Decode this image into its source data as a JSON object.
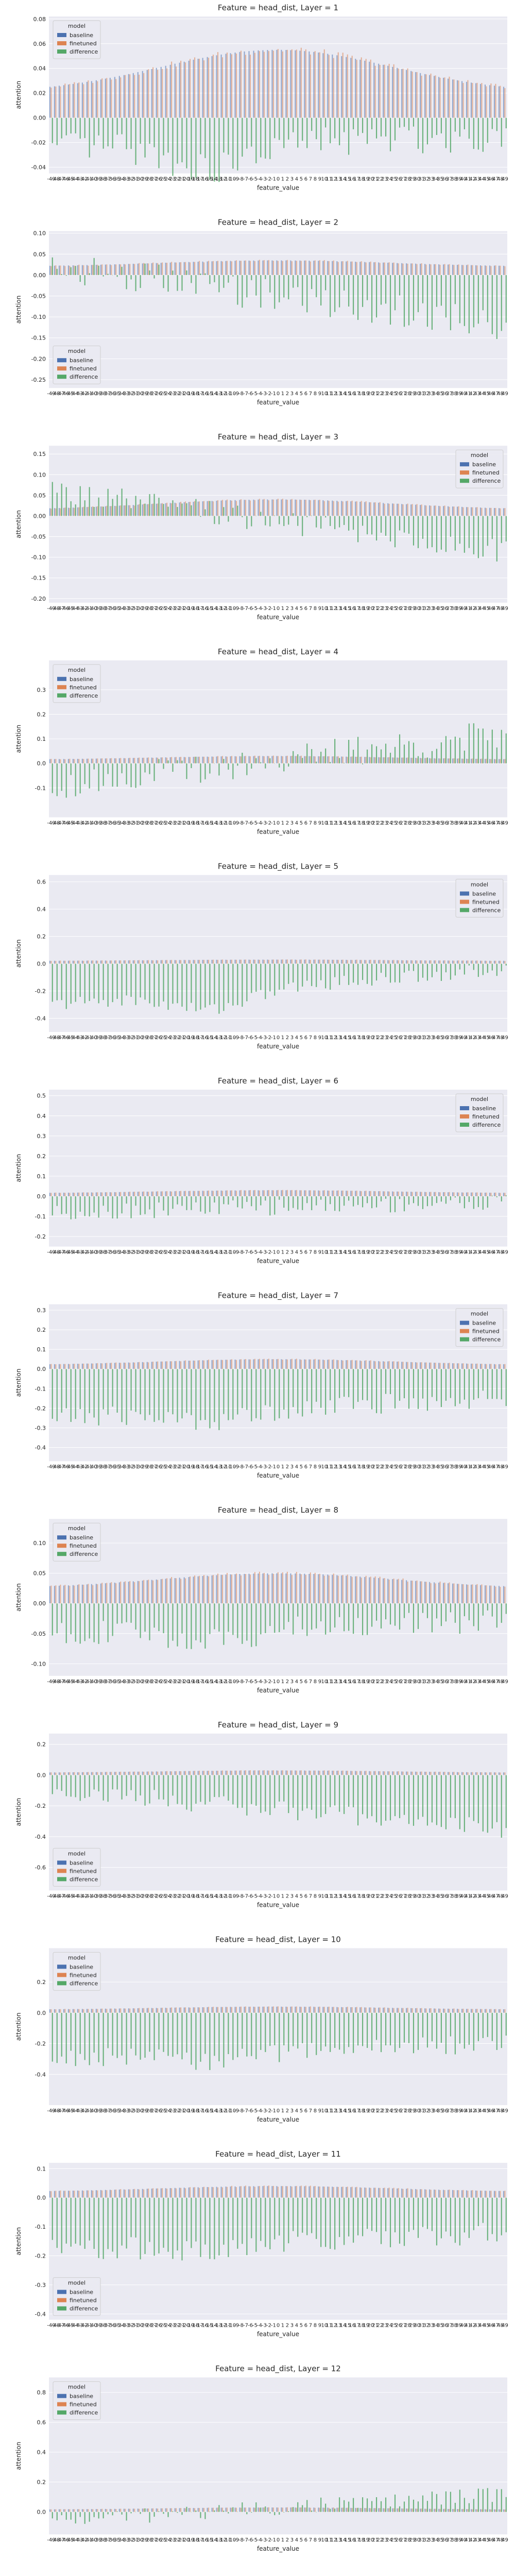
{
  "figure": {
    "xlabel": "feature_value",
    "ylabel": "attention",
    "legend_title": "model",
    "series_names": [
      "baseline",
      "finetuned",
      "difference"
    ],
    "colors": {
      "baseline": "#4c72b0",
      "finetuned": "#dd8452",
      "difference": "#55a868",
      "panel_bg": "#eaeaf2",
      "grid": "#ffffff"
    },
    "x_range": [
      -49,
      49
    ]
  },
  "chart_data": [
    {
      "type": "bar",
      "title": "Feature = head_dist, Layer = 1",
      "ylim": [
        -0.045,
        0.082
      ],
      "yticks": [
        -0.04,
        -0.02,
        0.0,
        0.02,
        0.04,
        0.06,
        0.08
      ],
      "tick_format": 2,
      "legend": "top-left",
      "profile": {
        "base": 0.02,
        "peak": 0.055,
        "width": 25,
        "diff_left": -0.025,
        "diff_right": -0.015,
        "diff_dip": -0.02,
        "noise": 0.012
      }
    },
    {
      "type": "bar",
      "title": "Feature = head_dist, Layer = 2",
      "ylim": [
        -0.27,
        0.105
      ],
      "yticks": [
        -0.25,
        -0.2,
        -0.15,
        -0.1,
        -0.05,
        0.0,
        0.05,
        0.1
      ],
      "tick_format": 2,
      "legend": "bottom-left",
      "profile": {
        "base": 0.02,
        "peak": 0.035,
        "width": 25,
        "diff_left": 0.02,
        "diff_right": -0.12,
        "diff_dip": 0,
        "noise": 0.04
      }
    },
    {
      "type": "bar",
      "title": "Feature = head_dist, Layer = 3",
      "ylim": [
        -0.21,
        0.17
      ],
      "yticks": [
        -0.2,
        -0.15,
        -0.1,
        -0.05,
        0.0,
        0.05,
        0.1,
        0.15
      ],
      "tick_format": 2,
      "legend": "top-right",
      "profile": {
        "base": 0.015,
        "peak": 0.04,
        "width": 25,
        "diff_left": 0.06,
        "diff_right": -0.09,
        "diff_dip": 0,
        "noise": 0.03
      }
    },
    {
      "type": "bar",
      "title": "Feature = head_dist, Layer = 4",
      "ylim": [
        -0.22,
        0.42
      ],
      "yticks": [
        -0.1,
        0.0,
        0.1,
        0.2,
        0.3
      ],
      "tick_format": 1,
      "legend": "top-left",
      "profile": {
        "base": 0.015,
        "peak": 0.03,
        "width": 25,
        "diff_left": -0.09,
        "diff_right": 0.12,
        "diff_dip": 0,
        "noise": 0.06
      }
    },
    {
      "type": "bar",
      "title": "Feature = head_dist, Layer = 5",
      "ylim": [
        -0.5,
        0.65
      ],
      "yticks": [
        -0.4,
        -0.2,
        0.0,
        0.2,
        0.4,
        0.6
      ],
      "tick_format": 1,
      "legend": "top-right",
      "profile": {
        "base": 0.02,
        "peak": 0.03,
        "width": 25,
        "diff_left": -0.3,
        "diff_right": -0.04,
        "diff_dip": -0.12,
        "noise": 0.05
      }
    },
    {
      "type": "bar",
      "title": "Feature = head_dist, Layer = 6",
      "ylim": [
        -0.25,
        0.53
      ],
      "yticks": [
        -0.2,
        -0.1,
        0.0,
        0.1,
        0.2,
        0.3,
        0.4,
        0.5
      ],
      "tick_format": 1,
      "legend": "top-right",
      "profile": {
        "base": 0.015,
        "peak": 0.03,
        "width": 25,
        "diff_left": -0.08,
        "diff_right": -0.03,
        "diff_dip": 0,
        "noise": 0.04
      }
    },
    {
      "type": "bar",
      "title": "Feature = head_dist, Layer = 7",
      "ylim": [
        -0.47,
        0.33
      ],
      "yticks": [
        -0.4,
        -0.3,
        -0.2,
        -0.1,
        0.0,
        0.1,
        0.2,
        0.3
      ],
      "tick_format": 1,
      "legend": "top-right",
      "profile": {
        "base": 0.02,
        "peak": 0.05,
        "width": 25,
        "diff_left": -0.25,
        "diff_right": -0.15,
        "diff_dip": -0.05,
        "noise": 0.05
      }
    },
    {
      "type": "bar",
      "title": "Feature = head_dist, Layer = 8",
      "ylim": [
        -0.12,
        0.14
      ],
      "yticks": [
        -0.1,
        -0.05,
        0.0,
        0.05,
        0.1
      ],
      "tick_format": 2,
      "legend": "top-left",
      "profile": {
        "base": 0.025,
        "peak": 0.05,
        "width": 25,
        "diff_left": -0.05,
        "diff_right": -0.03,
        "diff_dip": -0.02,
        "noise": 0.02
      }
    },
    {
      "type": "bar",
      "title": "Feature = head_dist, Layer = 9",
      "ylim": [
        -0.75,
        0.27
      ],
      "yticks": [
        -0.6,
        -0.4,
        -0.2,
        0.0,
        0.2
      ],
      "tick_format": 1,
      "legend": "bottom-left",
      "profile": {
        "base": 0.015,
        "peak": 0.03,
        "width": 25,
        "diff_left": -0.1,
        "diff_right": -0.35,
        "diff_dip": 0,
        "noise": 0.06
      }
    },
    {
      "type": "bar",
      "title": "Feature = head_dist, Layer = 10",
      "ylim": [
        -0.6,
        0.42
      ],
      "yticks": [
        -0.4,
        -0.2,
        0.0,
        0.2
      ],
      "tick_format": 1,
      "legend": "top-left",
      "profile": {
        "base": 0.02,
        "peak": 0.04,
        "width": 25,
        "diff_left": -0.3,
        "diff_right": -0.2,
        "diff_dip": -0.05,
        "noise": 0.06
      }
    },
    {
      "type": "bar",
      "title": "Feature = head_dist, Layer = 11",
      "ylim": [
        -0.42,
        0.12
      ],
      "yticks": [
        -0.4,
        -0.3,
        -0.2,
        -0.1,
        0.0,
        0.1
      ],
      "tick_format": 1,
      "legend": "bottom-left",
      "profile": {
        "base": 0.02,
        "peak": 0.04,
        "width": 25,
        "diff_left": -0.18,
        "diff_right": -0.12,
        "diff_dip": -0.03,
        "noise": 0.04
      }
    },
    {
      "type": "bar",
      "title": "Feature = head_dist, Layer = 12",
      "ylim": [
        -0.15,
        0.9
      ],
      "yticks": [
        0.0,
        0.2,
        0.4,
        0.6,
        0.8
      ],
      "tick_format": 1,
      "legend": "top-left",
      "profile": {
        "base": 0.015,
        "peak": 0.03,
        "width": 25,
        "diff_left": -0.06,
        "diff_right": 0.12,
        "diff_dip": 0,
        "noise": 0.05
      }
    }
  ]
}
